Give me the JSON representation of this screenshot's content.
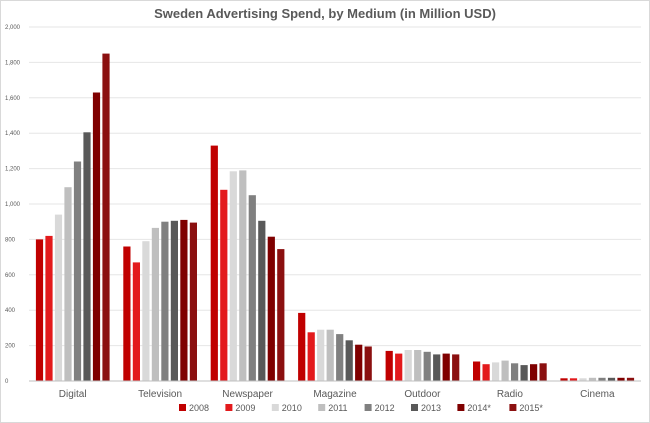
{
  "chart_data": {
    "type": "bar",
    "title": "Sweden Advertising Spend, by Medium (in Million USD)",
    "xlabel": "",
    "ylabel": "",
    "ylim": [
      0,
      2000
    ],
    "yticks": [
      "0",
      "200",
      "400",
      "600",
      "800",
      "1,000",
      "1,200",
      "1,400",
      "1,600",
      "1,800",
      "2,000"
    ],
    "grid": true,
    "legend_position": "bottom",
    "categories": [
      "Digital",
      "Television",
      "Newspaper",
      "Magazine",
      "Outdoor",
      "Radio",
      "Cinema"
    ],
    "series": [
      {
        "name": "2008",
        "color": "#c00000",
        "values": [
          800,
          760,
          1330,
          385,
          170,
          110,
          15
        ]
      },
      {
        "name": "2009",
        "color": "#e31a1c",
        "values": [
          820,
          670,
          1080,
          275,
          155,
          95,
          15
        ]
      },
      {
        "name": "2010",
        "color": "#d9d9d9",
        "values": [
          940,
          790,
          1185,
          290,
          175,
          105,
          15
        ]
      },
      {
        "name": "2011",
        "color": "#bfbfbf",
        "values": [
          1095,
          865,
          1190,
          290,
          175,
          115,
          18
        ]
      },
      {
        "name": "2012",
        "color": "#808080",
        "values": [
          1240,
          900,
          1050,
          265,
          165,
          100,
          18
        ]
      },
      {
        "name": "2013",
        "color": "#595959",
        "values": [
          1405,
          905,
          905,
          230,
          150,
          90,
          18
        ]
      },
      {
        "name": "2014*",
        "color": "#7f0000",
        "values": [
          1630,
          910,
          815,
          205,
          155,
          95,
          18
        ]
      },
      {
        "name": "2015*",
        "color": "#8b1010",
        "values": [
          1850,
          895,
          745,
          195,
          150,
          100,
          18
        ]
      }
    ]
  }
}
